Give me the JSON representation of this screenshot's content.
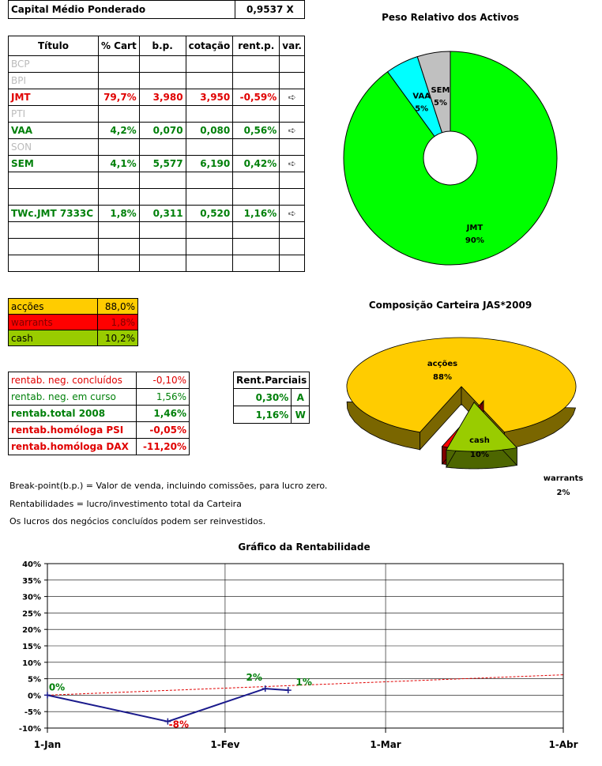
{
  "header": {
    "label": "Capital Médio Ponderado",
    "value": "0,9537 X"
  },
  "portfolio": {
    "columns": [
      "Título",
      "% Cart",
      "b.p.",
      "cotação",
      "rent.p.",
      "var."
    ],
    "rows": [
      {
        "titulo": "BCP",
        "cart": "",
        "bp": "",
        "cot": "",
        "rent": "",
        "var": "",
        "style": "gray"
      },
      {
        "titulo": "BPI",
        "cart": "",
        "bp": "",
        "cot": "",
        "rent": "",
        "var": "",
        "style": "gray"
      },
      {
        "titulo": "JMT",
        "cart": "79,7%",
        "bp": "3,980",
        "cot": "3,950",
        "rent": "-0,59%",
        "var": "➪",
        "style": "red"
      },
      {
        "titulo": "PTI",
        "cart": "",
        "bp": "",
        "cot": "",
        "rent": "",
        "var": "",
        "style": "gray"
      },
      {
        "titulo": "VAA",
        "cart": "4,2%",
        "bp": "0,070",
        "cot": "0,080",
        "rent": "0,56%",
        "var": "➪",
        "style": "green"
      },
      {
        "titulo": "SON",
        "cart": "",
        "bp": "",
        "cot": "",
        "rent": "",
        "var": "",
        "style": "gray"
      },
      {
        "titulo": "SEM",
        "cart": "4,1%",
        "bp": "5,577",
        "cot": "6,190",
        "rent": "0,42%",
        "var": "➪",
        "style": "green"
      },
      {
        "titulo": "",
        "cart": "",
        "bp": "",
        "cot": "",
        "rent": "",
        "var": "",
        "style": "gray"
      },
      {
        "titulo": "",
        "cart": "",
        "bp": "",
        "cot": "",
        "rent": "",
        "var": "",
        "style": "gray"
      },
      {
        "titulo": "TWc.JMT 7333C",
        "cart": "1,8%",
        "bp": "0,311",
        "cot": "0,520",
        "rent": "1,16%",
        "var": "➪",
        "style": "green"
      },
      {
        "titulo": "",
        "cart": "",
        "bp": "",
        "cot": "",
        "rent": "",
        "var": "",
        "style": "gray"
      },
      {
        "titulo": "",
        "cart": "",
        "bp": "",
        "cot": "",
        "rent": "",
        "var": "",
        "style": "gray"
      },
      {
        "titulo": "",
        "cart": "",
        "bp": "",
        "cot": "",
        "rent": "",
        "var": "",
        "style": "gray"
      }
    ]
  },
  "allocation": [
    {
      "label": "acções",
      "value": "88,0%",
      "color": "#ffcc00"
    },
    {
      "label": "warrants",
      "value": "1,8%",
      "color": "#ff0000"
    },
    {
      "label": "cash",
      "value": "10,2%",
      "color": "#99cc00"
    }
  ],
  "rentab": [
    {
      "label": "rentab. neg. concluídos",
      "value": "-0,10%",
      "style": "redn"
    },
    {
      "label": "rentab. neg. em curso",
      "value": "1,56%",
      "style": "greenn"
    },
    {
      "label": "rentab.total 2008",
      "value": "1,46%",
      "style": "green"
    },
    {
      "label": "rentab.homóloga PSI",
      "value": "-0,05%",
      "style": "red"
    },
    {
      "label": "rentab.homóloga DAX",
      "value": "-11,20%",
      "style": "red"
    }
  ],
  "parciais": {
    "header": "Rent.Parciais",
    "rows": [
      {
        "value": "0,30%",
        "code": "A"
      },
      {
        "value": "1,16%",
        "code": "W"
      }
    ]
  },
  "notes": [
    "Break-point(b.p.) = Valor de venda, incluindo comissões, para lucro zero.",
    "Rentabilidades = lucro/investimento total da Carteira",
    "Os lucros dos negócios concluídos podem ser reinvestidos."
  ],
  "chart_data": [
    {
      "type": "pie",
      "variant": "doughnut",
      "title": "Peso Relativo dos Activos",
      "labels": [
        "JMT",
        "VAA",
        "SEM"
      ],
      "values": [
        90,
        5,
        5
      ],
      "value_labels": [
        "90%",
        "5%",
        "5%"
      ],
      "colors": [
        "#00ff00",
        "#00ffff",
        "#c0c0c0"
      ]
    },
    {
      "type": "pie",
      "variant": "3d-exploded",
      "title": "Composição Carteira JAS*2009",
      "labels": [
        "acções",
        "cash",
        "warrants"
      ],
      "values": [
        88,
        10,
        2
      ],
      "value_labels": [
        "88%",
        "10%",
        "2%"
      ],
      "colors": [
        "#ffcc00",
        "#99cc00",
        "#ff0000"
      ]
    },
    {
      "type": "line",
      "title": "Gráfico da Rentabilidade",
      "x_ticks": [
        "1-Jan",
        "1-Fev",
        "1-Mar",
        "1-Abr"
      ],
      "y_ticks": [
        "40%",
        "35%",
        "30%",
        "25%",
        "20%",
        "15%",
        "10%",
        "5%",
        "0%",
        "-5%",
        "-10%"
      ],
      "ylim": [
        -10,
        40
      ],
      "xlim_days": [
        0,
        90
      ],
      "series": [
        {
          "style": "solid",
          "color": "#1a1a8c",
          "points": [
            [
              0,
              0
            ],
            [
              21,
              -8
            ],
            [
              38,
              2
            ],
            [
              42,
              1.5
            ]
          ],
          "point_labels": [
            "0%",
            "-8%",
            "2%",
            "1%"
          ],
          "label_colors": [
            "#00800a",
            "#e00000",
            "#00800a",
            "#00800a"
          ]
        },
        {
          "style": "dashed-trend",
          "color": "#e00000",
          "points": [
            [
              0,
              0
            ],
            [
              90,
              6.2
            ]
          ]
        }
      ]
    }
  ]
}
